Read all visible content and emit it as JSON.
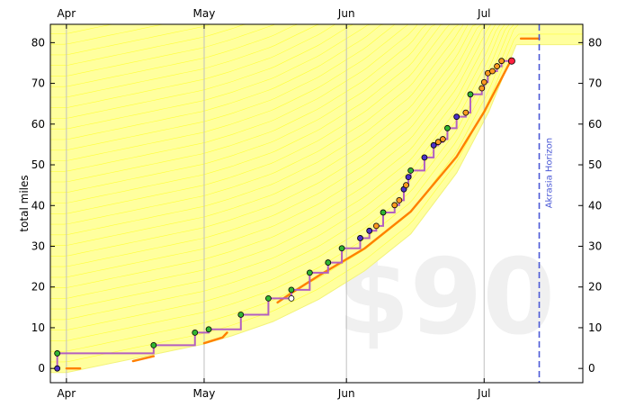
{
  "chart_data": {
    "type": "line",
    "title": "",
    "ylabel": "total miles",
    "xlabel": "",
    "x_ticks": [
      {
        "label": "Apr",
        "day": 0
      },
      {
        "label": "May",
        "day": 30
      },
      {
        "label": "Jun",
        "day": 61
      },
      {
        "label": "Jul",
        "day": 91
      }
    ],
    "y_ticks": [
      0,
      10,
      20,
      30,
      40,
      50,
      60,
      70,
      80
    ],
    "xlim_days": [
      -3.5,
      112.5
    ],
    "ylim": [
      -3.5,
      84.5
    ],
    "watermark": "$90",
    "horizon": {
      "label": "Akrasia Horizon",
      "day": 103
    },
    "skull_watermark": true,
    "grid": "vertical lines at month starts",
    "colors": {
      "road_fill": "#ffff9e",
      "road_lines": "#ffff30",
      "progress_line": "#b35fc1",
      "centerline": "#ff8000",
      "point_green": "#31b631",
      "point_blue": "#4b32c8",
      "point_orange": "#ff9a20",
      "point_last": "#ff2040",
      "horizon": "#4b59d6",
      "grid": "#bfbfbf",
      "watermark": "#f0f0f0"
    },
    "road": [
      {
        "day": -3.5,
        "miles": -1
      },
      {
        "day": 0,
        "miles": -1
      },
      {
        "day": 30,
        "miles": 6
      },
      {
        "day": 36,
        "miles": 8
      },
      {
        "day": 45,
        "miles": 11.5
      },
      {
        "day": 55,
        "miles": 17
      },
      {
        "day": 65,
        "miles": 24
      },
      {
        "day": 75,
        "miles": 33
      },
      {
        "day": 85,
        "miles": 48
      },
      {
        "day": 92,
        "miles": 63
      },
      {
        "day": 98,
        "miles": 79.5
      },
      {
        "day": 112.5,
        "miles": 79.5
      }
    ],
    "road_band_top": 84.5,
    "centerline_segments": [
      [
        [
          0,
          0
        ],
        [
          3,
          0
        ]
      ],
      [
        [
          14.5,
          1.8
        ],
        [
          19,
          3
        ]
      ],
      [
        [
          30,
          6.2
        ],
        [
          34,
          7.6
        ],
        [
          35,
          8.8
        ]
      ],
      [
        [
          46,
          16.2
        ],
        [
          49,
          18.5
        ],
        [
          55,
          22.8
        ],
        [
          65,
          29.5
        ],
        [
          75,
          38.5
        ],
        [
          85,
          52
        ],
        [
          91,
          63
        ],
        [
          97,
          76
        ]
      ],
      [
        [
          99,
          81
        ],
        [
          103,
          81
        ]
      ]
    ],
    "datapoints": [
      {
        "day": -2,
        "miles": 0,
        "kind": "blue"
      },
      {
        "day": -2,
        "miles": 3.7,
        "kind": "green"
      },
      {
        "day": 19,
        "miles": 5.7,
        "kind": "green"
      },
      {
        "day": 28,
        "miles": 8.8,
        "kind": "green"
      },
      {
        "day": 31,
        "miles": 9.6,
        "kind": "green"
      },
      {
        "day": 38,
        "miles": 13.2,
        "kind": "green"
      },
      {
        "day": 44,
        "miles": 17.2,
        "kind": "green"
      },
      {
        "day": 49,
        "miles": 17.2,
        "kind": "open"
      },
      {
        "day": 49,
        "miles": 19.3,
        "kind": "green"
      },
      {
        "day": 53,
        "miles": 23.5,
        "kind": "green"
      },
      {
        "day": 57,
        "miles": 26,
        "kind": "green"
      },
      {
        "day": 60,
        "miles": 29.5,
        "kind": "green"
      },
      {
        "day": 64,
        "miles": 32,
        "kind": "blue"
      },
      {
        "day": 66,
        "miles": 33.8,
        "kind": "blue"
      },
      {
        "day": 67.5,
        "miles": 35,
        "kind": "orange"
      },
      {
        "day": 69,
        "miles": 38.3,
        "kind": "green"
      },
      {
        "day": 71.5,
        "miles": 40.1,
        "kind": "orange"
      },
      {
        "day": 72.5,
        "miles": 41.3,
        "kind": "orange"
      },
      {
        "day": 73.5,
        "miles": 44,
        "kind": "blue"
      },
      {
        "day": 74,
        "miles": 45,
        "kind": "orange"
      },
      {
        "day": 74.5,
        "miles": 47,
        "kind": "blue"
      },
      {
        "day": 75,
        "miles": 48.6,
        "kind": "green"
      },
      {
        "day": 78,
        "miles": 51.8,
        "kind": "blue"
      },
      {
        "day": 80,
        "miles": 54.8,
        "kind": "blue"
      },
      {
        "day": 81,
        "miles": 55.6,
        "kind": "orange"
      },
      {
        "day": 82,
        "miles": 56.3,
        "kind": "orange"
      },
      {
        "day": 83,
        "miles": 59,
        "kind": "green"
      },
      {
        "day": 85,
        "miles": 61.8,
        "kind": "blue"
      },
      {
        "day": 87,
        "miles": 62.8,
        "kind": "orange"
      },
      {
        "day": 88,
        "miles": 67.3,
        "kind": "green"
      },
      {
        "day": 90.5,
        "miles": 68.8,
        "kind": "orange"
      },
      {
        "day": 91,
        "miles": 70.3,
        "kind": "orange"
      },
      {
        "day": 91.8,
        "miles": 72.5,
        "kind": "orange"
      },
      {
        "day": 92.8,
        "miles": 73,
        "kind": "orange"
      },
      {
        "day": 93.8,
        "miles": 74.2,
        "kind": "orange"
      },
      {
        "day": 94.8,
        "miles": 75.5,
        "kind": "orange"
      },
      {
        "day": 97,
        "miles": 75.5,
        "kind": "last"
      }
    ]
  }
}
